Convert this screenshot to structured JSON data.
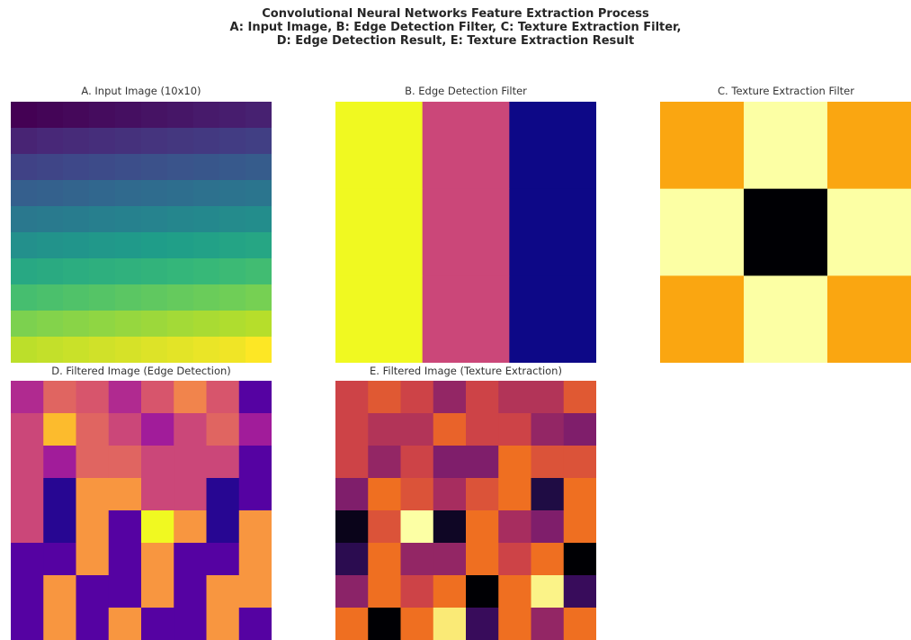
{
  "figure": {
    "title_lines": [
      "Convolutional Neural Networks Feature Extraction Process",
      "A: Input Image, B: Edge Detection Filter, C: Texture Extraction Filter,",
      "D: Edge Detection Result, E: Texture Extraction Result"
    ]
  },
  "chart_data": [
    {
      "type": "heatmap",
      "title": "A. Input Image (10x10)",
      "colormap": "viridis",
      "vmin": 0,
      "vmax": 1,
      "grid": false,
      "axes": "off",
      "values": [
        [
          0.0,
          0.01,
          0.02,
          0.03,
          0.04,
          0.05,
          0.06,
          0.07,
          0.08,
          0.09
        ],
        [
          0.1,
          0.11,
          0.12,
          0.13,
          0.14,
          0.15,
          0.16,
          0.17,
          0.18,
          0.19
        ],
        [
          0.2,
          0.21,
          0.22,
          0.23,
          0.24,
          0.25,
          0.26,
          0.27,
          0.28,
          0.29
        ],
        [
          0.3,
          0.31,
          0.32,
          0.33,
          0.34,
          0.35,
          0.36,
          0.37,
          0.38,
          0.39
        ],
        [
          0.4,
          0.41,
          0.42,
          0.43,
          0.44,
          0.45,
          0.46,
          0.47,
          0.48,
          0.49
        ],
        [
          0.5,
          0.51,
          0.52,
          0.53,
          0.54,
          0.55,
          0.56,
          0.57,
          0.58,
          0.59
        ],
        [
          0.6,
          0.61,
          0.62,
          0.63,
          0.64,
          0.65,
          0.66,
          0.67,
          0.68,
          0.69
        ],
        [
          0.7,
          0.71,
          0.72,
          0.73,
          0.74,
          0.75,
          0.76,
          0.77,
          0.78,
          0.79
        ],
        [
          0.8,
          0.81,
          0.82,
          0.83,
          0.84,
          0.85,
          0.86,
          0.87,
          0.88,
          0.89
        ],
        [
          0.9,
          0.91,
          0.92,
          0.93,
          0.94,
          0.95,
          0.96,
          0.97,
          0.98,
          1.0
        ]
      ]
    },
    {
      "type": "heatmap",
      "title": "B. Edge Detection Filter",
      "colormap": "plasma",
      "vmin": -1,
      "vmax": 1,
      "grid": false,
      "axes": "off",
      "values": [
        [
          1,
          0,
          -1
        ],
        [
          1,
          0,
          -1
        ],
        [
          1,
          0,
          -1
        ]
      ]
    },
    {
      "type": "heatmap",
      "title": "C. Texture Extraction Filter",
      "colormap": "inferno",
      "vmin": -4,
      "vmax": 1,
      "grid": false,
      "axes": "off",
      "values": [
        [
          0,
          1,
          0
        ],
        [
          1,
          -4,
          1
        ],
        [
          0,
          1,
          0
        ]
      ]
    },
    {
      "type": "heatmap",
      "title": "D. Filtered Image (Edge Detection)",
      "colormap": "plasma",
      "vmin": 0,
      "vmax": 1,
      "grid": false,
      "axes": "off",
      "values": [
        [
          0.4,
          0.6,
          0.55,
          0.4,
          0.55,
          0.7,
          0.55,
          0.15
        ],
        [
          0.5,
          0.85,
          0.6,
          0.5,
          0.35,
          0.5,
          0.6,
          0.35
        ],
        [
          0.5,
          0.35,
          0.6,
          0.6,
          0.5,
          0.5,
          0.5,
          0.15
        ],
        [
          0.5,
          0.05,
          0.75,
          0.75,
          0.5,
          0.5,
          0.05,
          0.15
        ],
        [
          0.5,
          0.05,
          0.75,
          0.15,
          1.0,
          0.75,
          0.05,
          0.75
        ],
        [
          0.15,
          0.15,
          0.75,
          0.15,
          0.75,
          0.15,
          0.15,
          0.75
        ],
        [
          0.15,
          0.75,
          0.15,
          0.15,
          0.75,
          0.15,
          0.75,
          0.75
        ],
        [
          0.15,
          0.75,
          0.15,
          0.75,
          0.15,
          0.15,
          0.75,
          0.15
        ]
      ]
    },
    {
      "type": "heatmap",
      "title": "E. Filtered Image (Texture Extraction)",
      "colormap": "inferno",
      "vmin": 0,
      "vmax": 1,
      "grid": false,
      "axes": "off",
      "values": [
        [
          0.55,
          0.62,
          0.55,
          0.4,
          0.55,
          0.48,
          0.48,
          0.62
        ],
        [
          0.55,
          0.48,
          0.48,
          0.65,
          0.55,
          0.55,
          0.4,
          0.35
        ],
        [
          0.55,
          0.4,
          0.55,
          0.35,
          0.35,
          0.68,
          0.6,
          0.6
        ],
        [
          0.35,
          0.68,
          0.6,
          0.45,
          0.6,
          0.68,
          0.12,
          0.68
        ],
        [
          0.04,
          0.6,
          1.0,
          0.06,
          0.68,
          0.45,
          0.35,
          0.68
        ],
        [
          0.15,
          0.68,
          0.4,
          0.4,
          0.68,
          0.55,
          0.68,
          0.0
        ],
        [
          0.38,
          0.68,
          0.55,
          0.68,
          0.0,
          0.68,
          0.97,
          0.18
        ],
        [
          0.68,
          0.0,
          0.68,
          0.95,
          0.18,
          0.68,
          0.4,
          0.68
        ]
      ]
    }
  ]
}
